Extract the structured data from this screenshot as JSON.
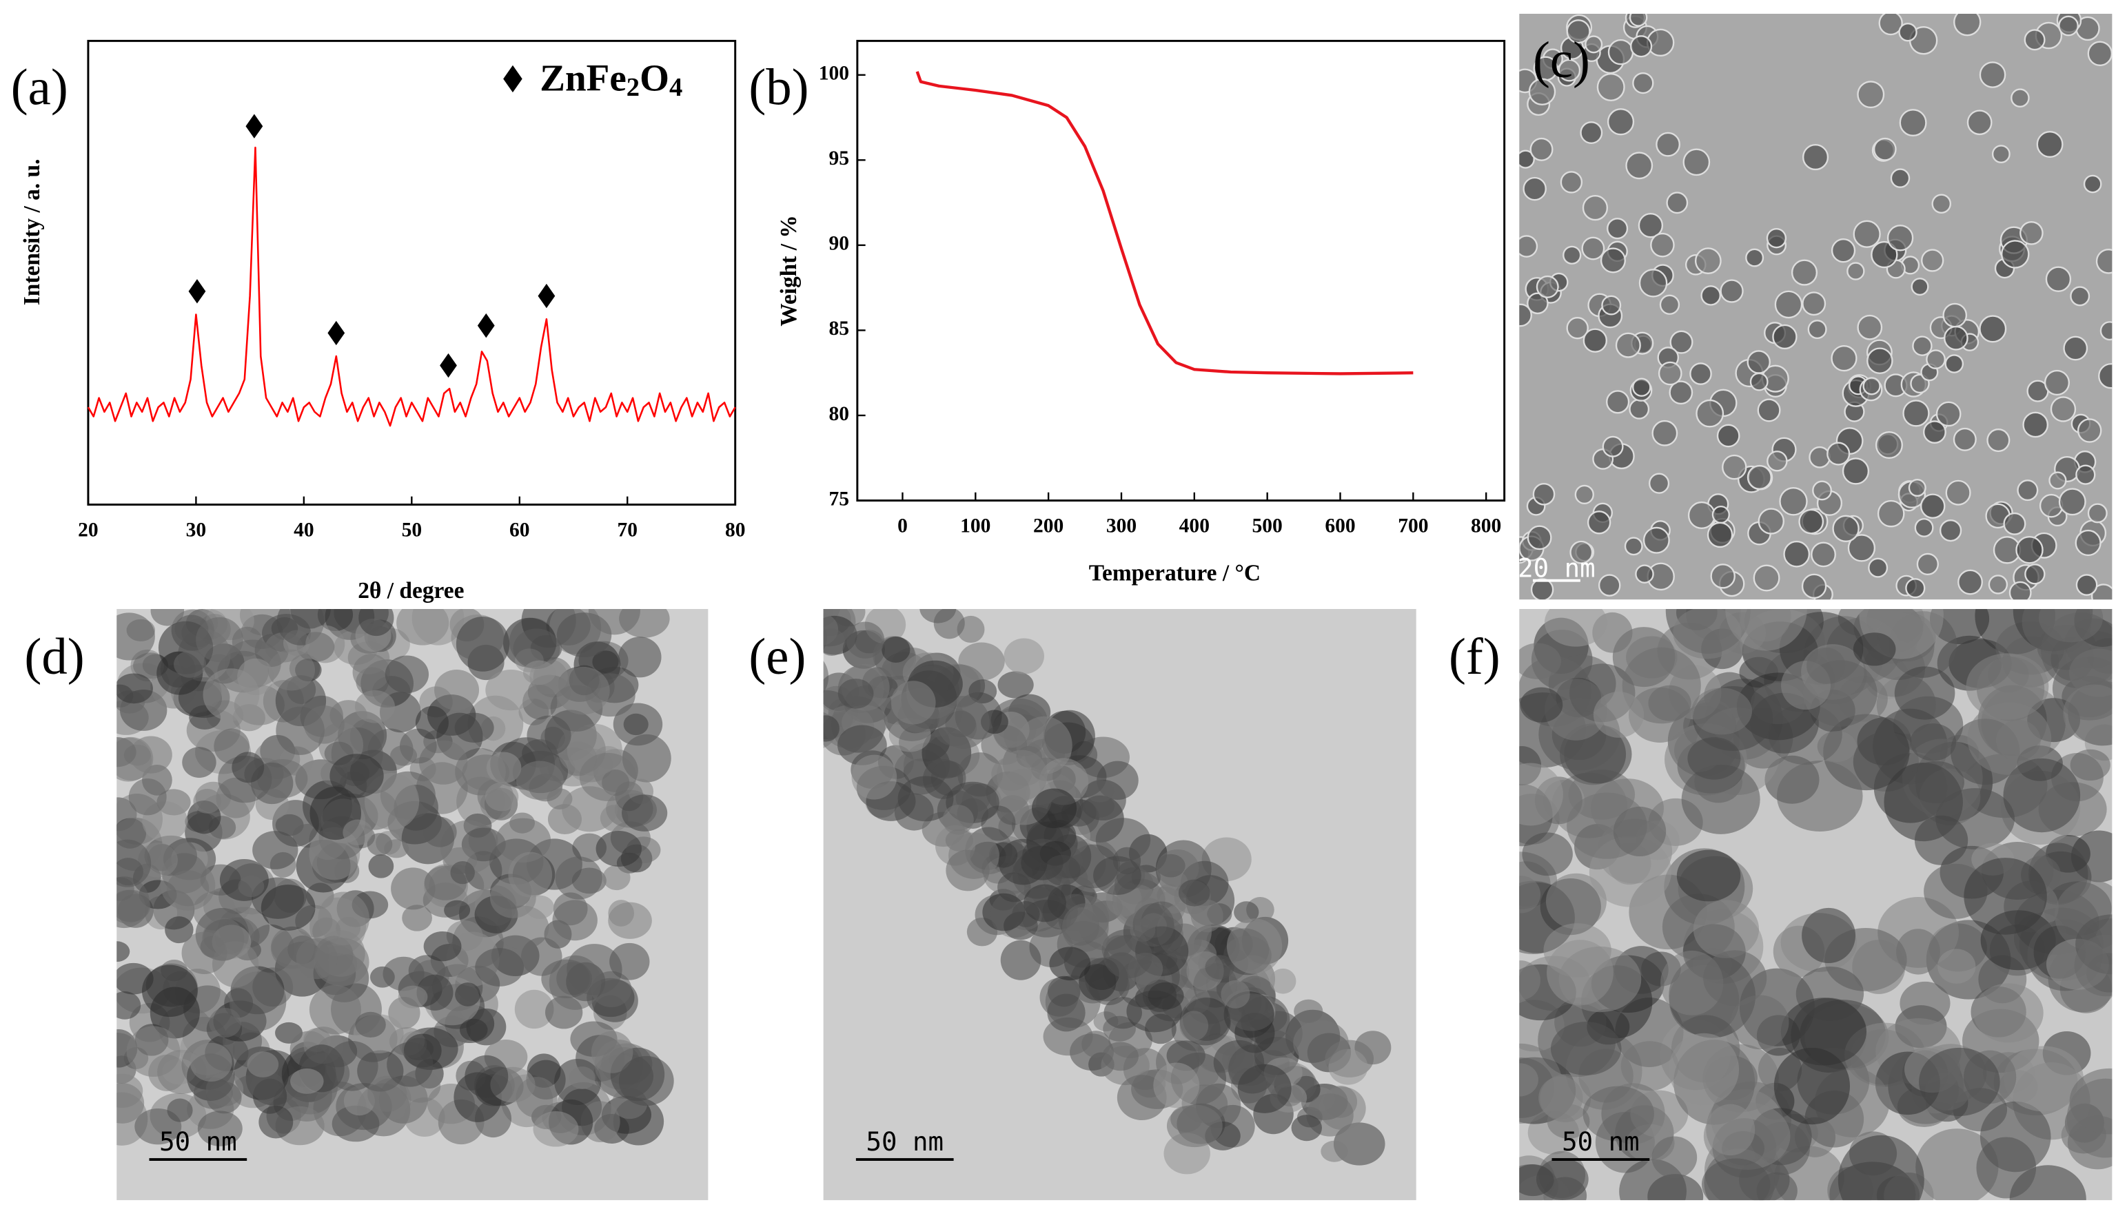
{
  "chart_data": [
    {
      "type": "line",
      "xlabel": "2θ / degree",
      "ylabel": "Intensity / a. u.",
      "x": [
        20,
        20.5,
        21,
        21.5,
        22,
        22.5,
        23,
        23.5,
        24,
        24.5,
        25,
        25.5,
        26,
        26.5,
        27,
        27.5,
        28,
        28.5,
        29,
        29.5,
        30,
        30.5,
        31,
        31.5,
        32,
        32.5,
        33,
        33.5,
        34,
        34.5,
        35,
        35.5,
        36,
        36.5,
        37,
        37.5,
        38,
        38.5,
        39,
        39.5,
        40,
        40.5,
        41,
        41.5,
        42,
        42.5,
        43,
        43.5,
        44,
        44.5,
        45,
        45.5,
        46,
        46.5,
        47,
        47.5,
        48,
        48.5,
        49,
        49.5,
        50,
        50.5,
        51,
        51.5,
        52,
        52.5,
        53,
        53.5,
        54,
        54.5,
        55,
        55.5,
        56,
        56.5,
        57,
        57.5,
        58,
        58.5,
        59,
        59.5,
        60,
        60.5,
        61,
        61.5,
        62,
        62.5,
        63,
        63.5,
        64,
        64.5,
        65,
        65.5,
        66,
        66.5,
        67,
        67.5,
        68,
        68.5,
        69,
        69.5,
        70,
        70.5,
        71,
        71.5,
        72,
        72.5,
        73,
        73.5,
        74,
        74.5,
        75,
        75.5,
        76,
        76.5,
        77,
        77.5,
        78,
        78.5,
        79,
        79.5,
        80
      ],
      "series": [
        {
          "color": "#ff0000",
          "values": [
            21,
            19,
            23,
            20,
            22,
            18,
            21,
            24,
            19,
            22,
            20,
            23,
            18,
            21,
            22,
            19,
            23,
            20,
            22,
            27,
            41,
            30,
            22,
            19,
            21,
            23,
            20,
            22,
            24,
            27,
            45,
            77,
            32,
            23,
            21,
            19,
            22,
            20,
            23,
            18,
            21,
            22,
            20,
            19,
            23,
            26,
            32,
            24,
            20,
            22,
            18,
            21,
            23,
            19,
            22,
            20,
            17,
            21,
            23,
            19,
            22,
            20,
            18,
            23,
            21,
            19,
            24,
            25,
            20,
            22,
            19,
            23,
            26,
            33,
            31,
            24,
            20,
            22,
            19,
            21,
            23,
            20,
            22,
            26,
            34,
            40,
            29,
            22,
            20,
            23,
            19,
            21,
            22,
            18,
            23,
            20,
            21,
            24,
            19,
            22,
            20,
            23,
            18,
            21,
            22,
            19,
            24,
            20,
            22,
            18,
            21,
            23,
            19,
            22,
            20,
            24,
            18,
            21,
            22,
            19,
            21
          ]
        }
      ],
      "markers": {
        "name": "ZnFe2O4",
        "color": "#000000",
        "x": [
          30.1,
          35.4,
          43.0,
          53.4,
          56.9,
          62.5
        ],
        "values": [
          46,
          81.6,
          37,
          30,
          38.6,
          45
        ]
      },
      "xlim": [
        20,
        80
      ],
      "xticks": [
        20,
        30,
        40,
        50,
        60,
        70,
        80
      ],
      "ylim": [
        0,
        100
      ]
    },
    {
      "type": "line",
      "xlabel": "Temperature / °C",
      "ylabel": "Weight / %",
      "x": [
        20,
        25,
        50,
        100,
        150,
        200,
        225,
        250,
        275,
        300,
        325,
        350,
        375,
        400,
        450,
        500,
        600,
        700
      ],
      "series": [
        {
          "color": "#e8141e",
          "values": [
            100.2,
            99.6,
            99.35,
            99.1,
            98.8,
            98.2,
            97.5,
            95.8,
            93.2,
            89.8,
            86.5,
            84.2,
            83.1,
            82.7,
            82.55,
            82.5,
            82.45,
            82.5
          ]
        }
      ],
      "xlim": [
        -62,
        825
      ],
      "xticks": [
        0,
        100,
        200,
        300,
        400,
        500,
        600,
        700,
        800
      ],
      "ylim": [
        75,
        102
      ],
      "yticks": [
        75,
        80,
        85,
        90,
        95,
        100
      ]
    }
  ],
  "panels": {
    "labels": [
      "(a)",
      "(b)",
      "(c)",
      "(d)",
      "(e)",
      "(f)"
    ],
    "images": [
      {
        "scale_bar": "20 nm"
      },
      {
        "scale_bar": "50 nm"
      },
      {
        "scale_bar": "50 nm"
      },
      {
        "scale_bar": "50 nm"
      }
    ]
  }
}
